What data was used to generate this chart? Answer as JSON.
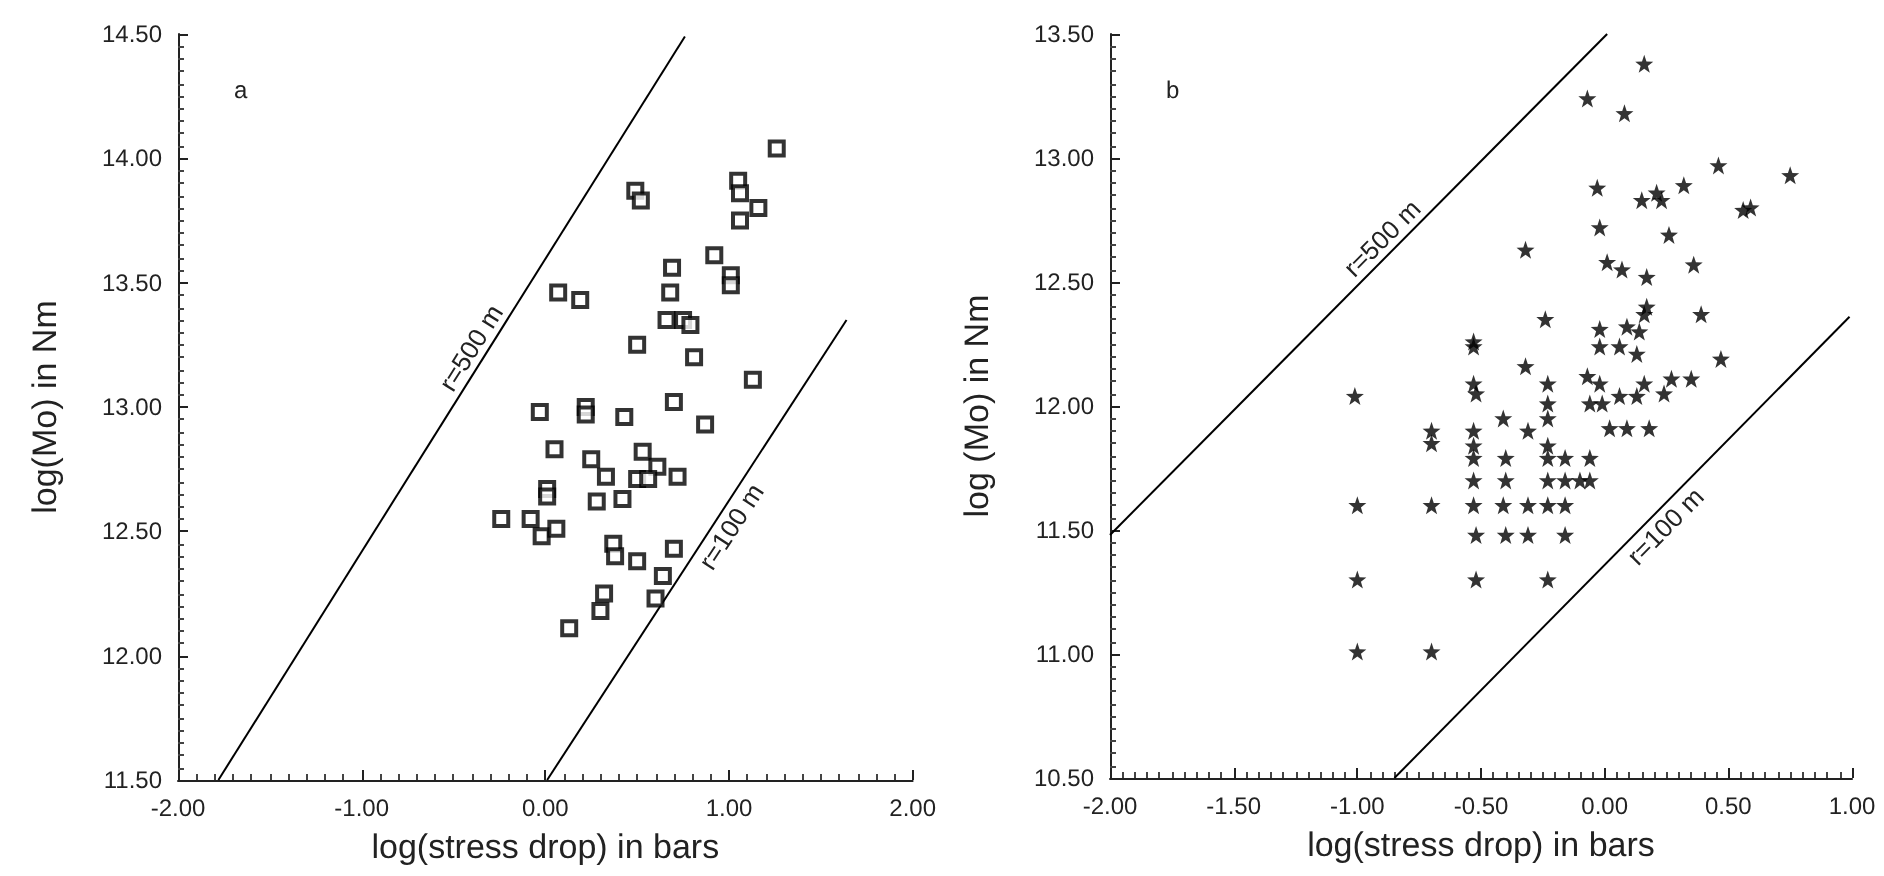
{
  "chart_data": [
    {
      "type": "scatter",
      "annotations": [
        "a"
      ],
      "xlabel": "log(stress drop) in bars",
      "ylabel": "log(Mo) in Nm",
      "legend": false,
      "grid": false,
      "xlim": [
        -2,
        2
      ],
      "ylim": [
        11.5,
        14.5
      ],
      "xticks": [
        {
          "value": -2,
          "label": "-2.00"
        },
        {
          "value": -1,
          "label": "-1.00"
        },
        {
          "value": 0,
          "label": "0.00"
        },
        {
          "value": 1,
          "label": "1.00"
        },
        {
          "value": 2,
          "label": "2.00"
        }
      ],
      "yticks": [
        {
          "value": 11.5,
          "label": "11.50"
        },
        {
          "value": 12,
          "label": "12.00"
        },
        {
          "value": 12.5,
          "label": "12.50"
        },
        {
          "value": 13,
          "label": "13.00"
        },
        {
          "value": 13.5,
          "label": "13.50"
        },
        {
          "value": 14,
          "label": "14.00"
        },
        {
          "value": 14.5,
          "label": "14.50"
        }
      ],
      "series": [
        {
          "marker": "square",
          "color": "#000000",
          "x": [
            1.26,
            1.05,
            1.06,
            1.16,
            1.06,
            0.49,
            0.52,
            0.92,
            0.69,
            1.01,
            1.01,
            0.68,
            0.07,
            0.19,
            0.66,
            0.75,
            0.79,
            0.5,
            0.81,
            1.13,
            0.7,
            -0.03,
            0.22,
            0.22,
            0.43,
            0.87,
            0.05,
            0.25,
            0.53,
            0.61,
            0.33,
            0.5,
            0.56,
            0.72,
            0.01,
            0.01,
            0.28,
            0.42,
            -0.24,
            -0.08,
            -0.02,
            0.06,
            0.37,
            0.38,
            0.5,
            0.7,
            0.64,
            0.6,
            0.32,
            0.3,
            0.13
          ],
          "values": [
            14.04,
            13.91,
            13.86,
            13.8,
            13.75,
            13.87,
            13.83,
            13.61,
            13.56,
            13.53,
            13.49,
            13.46,
            13.46,
            13.43,
            13.35,
            13.35,
            13.33,
            13.25,
            13.2,
            13.11,
            13.02,
            12.98,
            13,
            12.97,
            12.96,
            12.93,
            12.83,
            12.79,
            12.82,
            12.76,
            12.72,
            12.71,
            12.71,
            12.72,
            12.67,
            12.64,
            12.62,
            12.63,
            12.55,
            12.55,
            12.48,
            12.51,
            12.45,
            12.4,
            12.38,
            12.43,
            12.32,
            12.23,
            12.25,
            12.18,
            12.11
          ]
        },
        {
          "type": "line",
          "marker": "none",
          "name": "r=500 m",
          "color": "#000000",
          "x": [
            -1.78,
            0.76
          ],
          "values": [
            11.5,
            14.49
          ]
        },
        {
          "type": "line",
          "marker": "none",
          "name": "r=100 m",
          "color": "#000000",
          "x": [
            0.01,
            1.64
          ],
          "values": [
            11.5,
            13.35
          ]
        }
      ]
    },
    {
      "type": "scatter",
      "annotations": [
        "b"
      ],
      "xlabel": "log(stress drop) in bars",
      "ylabel": "log (Mo) in Nm",
      "legend": false,
      "grid": false,
      "xlim": [
        -2,
        1
      ],
      "ylim": [
        10.5,
        13.5
      ],
      "xticks": [
        {
          "value": -2,
          "label": "-2.00"
        },
        {
          "value": -1.5,
          "label": "-1.50"
        },
        {
          "value": -1,
          "label": "-1.00"
        },
        {
          "value": -0.5,
          "label": "-0.50"
        },
        {
          "value": 0,
          "label": "0.00"
        },
        {
          "value": 0.5,
          "label": "0.50"
        },
        {
          "value": 1,
          "label": "1.00"
        }
      ],
      "yticks": [
        {
          "value": 10.5,
          "label": "10.50"
        },
        {
          "value": 11,
          "label": "11.00"
        },
        {
          "value": 11.5,
          "label": "11.50"
        },
        {
          "value": 12,
          "label": "12.00"
        },
        {
          "value": 12.5,
          "label": "12.50"
        },
        {
          "value": 13,
          "label": "13.00"
        },
        {
          "value": 13.5,
          "label": "13.50"
        }
      ],
      "series": [
        {
          "marker": "star",
          "color": "#000000",
          "x": [
            0.16,
            -0.07,
            0.08,
            0.46,
            0.75,
            -0.03,
            0.32,
            0.15,
            0.21,
            0.23,
            0.56,
            0.59,
            -0.02,
            0.26,
            -0.32,
            0.01,
            0.07,
            0.17,
            0.36,
            0.17,
            0.16,
            0.39,
            -0.24,
            -0.02,
            0.09,
            0.14,
            -0.53,
            -0.53,
            -0.02,
            0.06,
            0.13,
            0.47,
            -0.32,
            -0.07,
            -0.02,
            0.27,
            0.35,
            -0.53,
            -0.52,
            -0.23,
            0.16,
            -1.01,
            0.06,
            0.13,
            0.24,
            -0.23,
            -0.06,
            -0.01,
            -0.41,
            -0.23,
            -0.7,
            -0.7,
            -0.53,
            -0.31,
            0.02,
            0.09,
            0.18,
            -0.53,
            -0.23,
            -0.53,
            -0.4,
            -0.23,
            -0.16,
            -0.06,
            -0.53,
            -0.4,
            -0.23,
            -0.16,
            -0.1,
            -0.06,
            -1,
            -0.7,
            -0.53,
            -0.41,
            -0.31,
            -0.23,
            -0.16,
            -0.52,
            -0.4,
            -0.31,
            -0.16,
            -1,
            -0.52,
            -0.23,
            -1,
            -0.7
          ],
          "values": [
            13.38,
            13.24,
            13.18,
            12.97,
            12.93,
            12.88,
            12.89,
            12.83,
            12.86,
            12.83,
            12.79,
            12.8,
            12.72,
            12.69,
            12.63,
            12.58,
            12.55,
            12.52,
            12.57,
            12.4,
            12.37,
            12.37,
            12.35,
            12.31,
            12.32,
            12.3,
            12.26,
            12.24,
            12.24,
            12.24,
            12.21,
            12.19,
            12.16,
            12.12,
            12.09,
            12.11,
            12.11,
            12.09,
            12.05,
            12.09,
            12.09,
            12.04,
            12.04,
            12.04,
            12.05,
            12.01,
            12.01,
            12.01,
            11.95,
            11.95,
            11.9,
            11.85,
            11.9,
            11.9,
            11.91,
            11.91,
            11.91,
            11.84,
            11.84,
            11.79,
            11.79,
            11.79,
            11.79,
            11.79,
            11.7,
            11.7,
            11.7,
            11.7,
            11.7,
            11.7,
            11.6,
            11.6,
            11.6,
            11.6,
            11.6,
            11.6,
            11.6,
            11.48,
            11.48,
            11.48,
            11.48,
            11.3,
            11.3,
            11.3,
            11.01,
            11.01
          ]
        },
        {
          "type": "line",
          "marker": "none",
          "name": "r=500 m",
          "color": "#000000",
          "x": [
            -2,
            0.01
          ],
          "values": [
            11.48,
            13.5
          ]
        },
        {
          "type": "line",
          "marker": "none",
          "name": "r=100 m",
          "color": "#000000",
          "x": [
            -0.85,
            0.99
          ],
          "values": [
            10.5,
            12.36
          ]
        }
      ]
    }
  ]
}
